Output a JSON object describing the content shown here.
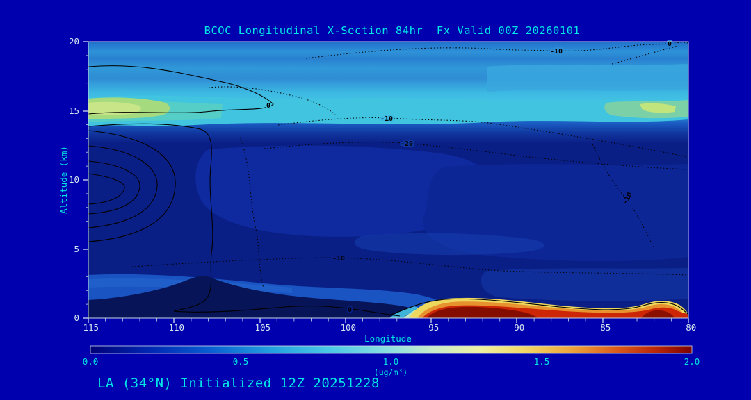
{
  "page": {
    "background": "#0000ae",
    "accent": "#00e8e8"
  },
  "header": {
    "title": "BCOC Longitudinal X-Section 84hr  Fx Valid 00Z 20260101"
  },
  "footer": {
    "annotation": "LA (34°N) Initialized 12Z 20251228"
  },
  "axes": {
    "x": {
      "label": "Longitude",
      "ticks": [
        "-115",
        "-110",
        "-105",
        "-100",
        "-95",
        "-90",
        "-85",
        "-80"
      ]
    },
    "y": {
      "label": "Altitude (km)",
      "ticks": [
        "0",
        "5",
        "10",
        "15",
        "20"
      ]
    }
  },
  "colorbar": {
    "ticks": [
      "0.0",
      "0.5",
      "1.0",
      "1.5",
      "2.0"
    ],
    "label": "(ug/m³)"
  },
  "contour_labels": [
    "-10",
    "0",
    "0",
    "-10",
    "-20",
    "-10",
    "-10",
    "0"
  ],
  "chart_data": {
    "type": "heatmap",
    "subtype": "filled-contour longitude-altitude cross-section",
    "title": "BCOC Longitudinal X-Section 84hr  Fx Valid 00Z 20260101",
    "xlabel": "Longitude",
    "ylabel": "Altitude (km)",
    "xlim": [
      -115,
      -80
    ],
    "ylim": [
      0,
      20
    ],
    "xticks": [
      -115,
      -110,
      -105,
      -100,
      -95,
      -90,
      -85,
      -80
    ],
    "yticks": [
      0,
      5,
      10,
      15,
      20
    ],
    "grid": false,
    "legend_position": "horizontal colorbar below plot",
    "colorbar": {
      "min": 0.0,
      "max": 2.0,
      "ticks": [
        0.0,
        0.5,
        1.0,
        1.5,
        2.0
      ],
      "label": "(ug/m³)",
      "palette": [
        "#000078",
        "#0028b4",
        "#095fd2",
        "#23a0de",
        "#4cc8e6",
        "#8fe0e0",
        "#c8ecca",
        "#eff0a0",
        "#f2d867",
        "#eda43b",
        "#d9571a",
        "#7c0200"
      ]
    },
    "field_estimate_ugm3": {
      "longitudes": [
        -115,
        -110,
        -105,
        -100,
        -95,
        -90,
        -85,
        -80
      ],
      "altitudes_km": [
        0,
        5,
        10,
        15,
        20
      ],
      "values_by_altitude": [
        [
          0.3,
          0.25,
          0.2,
          0.3,
          2.0,
          1.9,
          1.2,
          1.9
        ],
        [
          0.2,
          0.15,
          0.1,
          0.1,
          0.15,
          0.15,
          0.2,
          0.2
        ],
        [
          0.15,
          0.1,
          0.1,
          0.1,
          0.1,
          0.1,
          0.15,
          0.2
        ],
        [
          0.9,
          0.6,
          0.5,
          0.45,
          0.4,
          0.4,
          0.5,
          0.85
        ],
        [
          0.45,
          0.4,
          0.35,
          0.35,
          0.3,
          0.35,
          0.4,
          0.45
        ]
      ]
    },
    "features": [
      {
        "name": "upper-troposphere cyan band",
        "lon": [
          -115,
          -80
        ],
        "alt_km": [
          14,
          20
        ],
        "value_ugm3": "0.3-0.7"
      },
      {
        "name": "green-yellow maximum left",
        "lon": [
          -115,
          -112
        ],
        "alt_km": [
          14.5,
          16
        ],
        "value_ugm3": "~0.9"
      },
      {
        "name": "green-yellow maximum right",
        "lon": [
          -83.5,
          -80
        ],
        "alt_km": [
          14.5,
          15.5
        ],
        "value_ugm3": "~0.9"
      },
      {
        "name": "mid-troposphere minimum",
        "lon": [
          -115,
          -80
        ],
        "alt_km": [
          2,
          13
        ],
        "value_ugm3": "<0.2"
      },
      {
        "name": "surface plume",
        "lon": [
          -96.5,
          -80
        ],
        "alt_km": [
          0,
          1.4
        ],
        "value_ugm3": "1.0-2.0"
      },
      {
        "name": "surface plume dark-red core",
        "lon": [
          -96,
          -89.5
        ],
        "alt_km": [
          0,
          0.8
        ],
        "value_ugm3": ">=2.0"
      },
      {
        "name": "terrain-like dark wedge",
        "lon": [
          -115,
          -98
        ],
        "alt_km": [
          0,
          1.8
        ],
        "value_ugm3": "<0.1"
      }
    ],
    "overlay_contours": {
      "color": "#000000",
      "labeled_levels": [
        0,
        -10,
        -20
      ],
      "negative_style": "dotted",
      "zero_positive_style": "solid"
    }
  }
}
